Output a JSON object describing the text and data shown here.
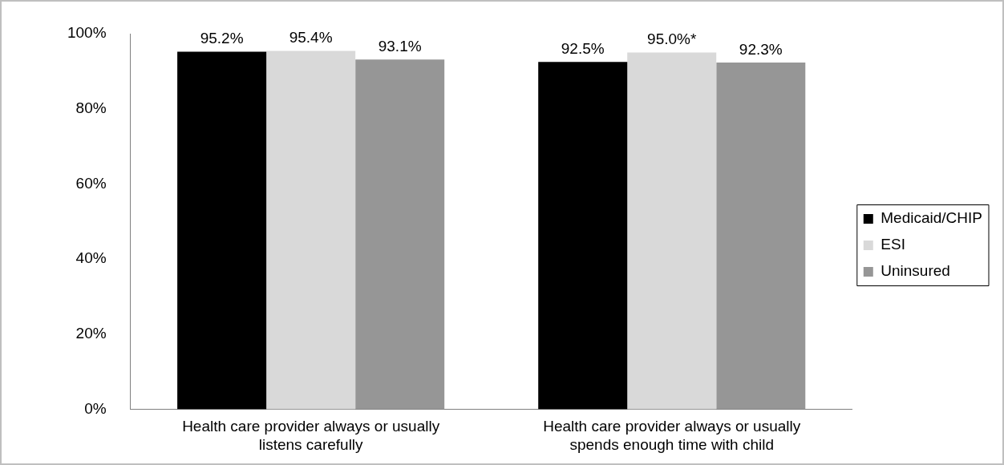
{
  "chart_data": {
    "type": "bar",
    "categories": [
      "Health care provider always or usually listens carefully",
      "Health care provider always or usually spends enough time with child"
    ],
    "series": [
      {
        "name": "Medicaid/CHIP",
        "color": "#000000",
        "values": [
          95.2,
          92.5
        ],
        "value_labels": [
          "95.2%",
          "92.5%"
        ]
      },
      {
        "name": "ESI",
        "color": "#d9d9d9",
        "values": [
          95.4,
          95.0
        ],
        "value_labels": [
          "95.4%",
          "95.0%*"
        ]
      },
      {
        "name": "Uninsured",
        "color": "#969696",
        "values": [
          93.1,
          92.3
        ],
        "value_labels": [
          "93.1%",
          "92.3%"
        ]
      }
    ],
    "ylim": [
      0,
      100
    ],
    "yticks": [
      {
        "value": 0,
        "label": "0%"
      },
      {
        "value": 20,
        "label": "20%"
      },
      {
        "value": 40,
        "label": "40%"
      },
      {
        "value": 60,
        "label": "60%"
      },
      {
        "value": 80,
        "label": "80%"
      },
      {
        "value": 100,
        "label": "100%"
      }
    ],
    "grid": false,
    "legend": "right"
  }
}
